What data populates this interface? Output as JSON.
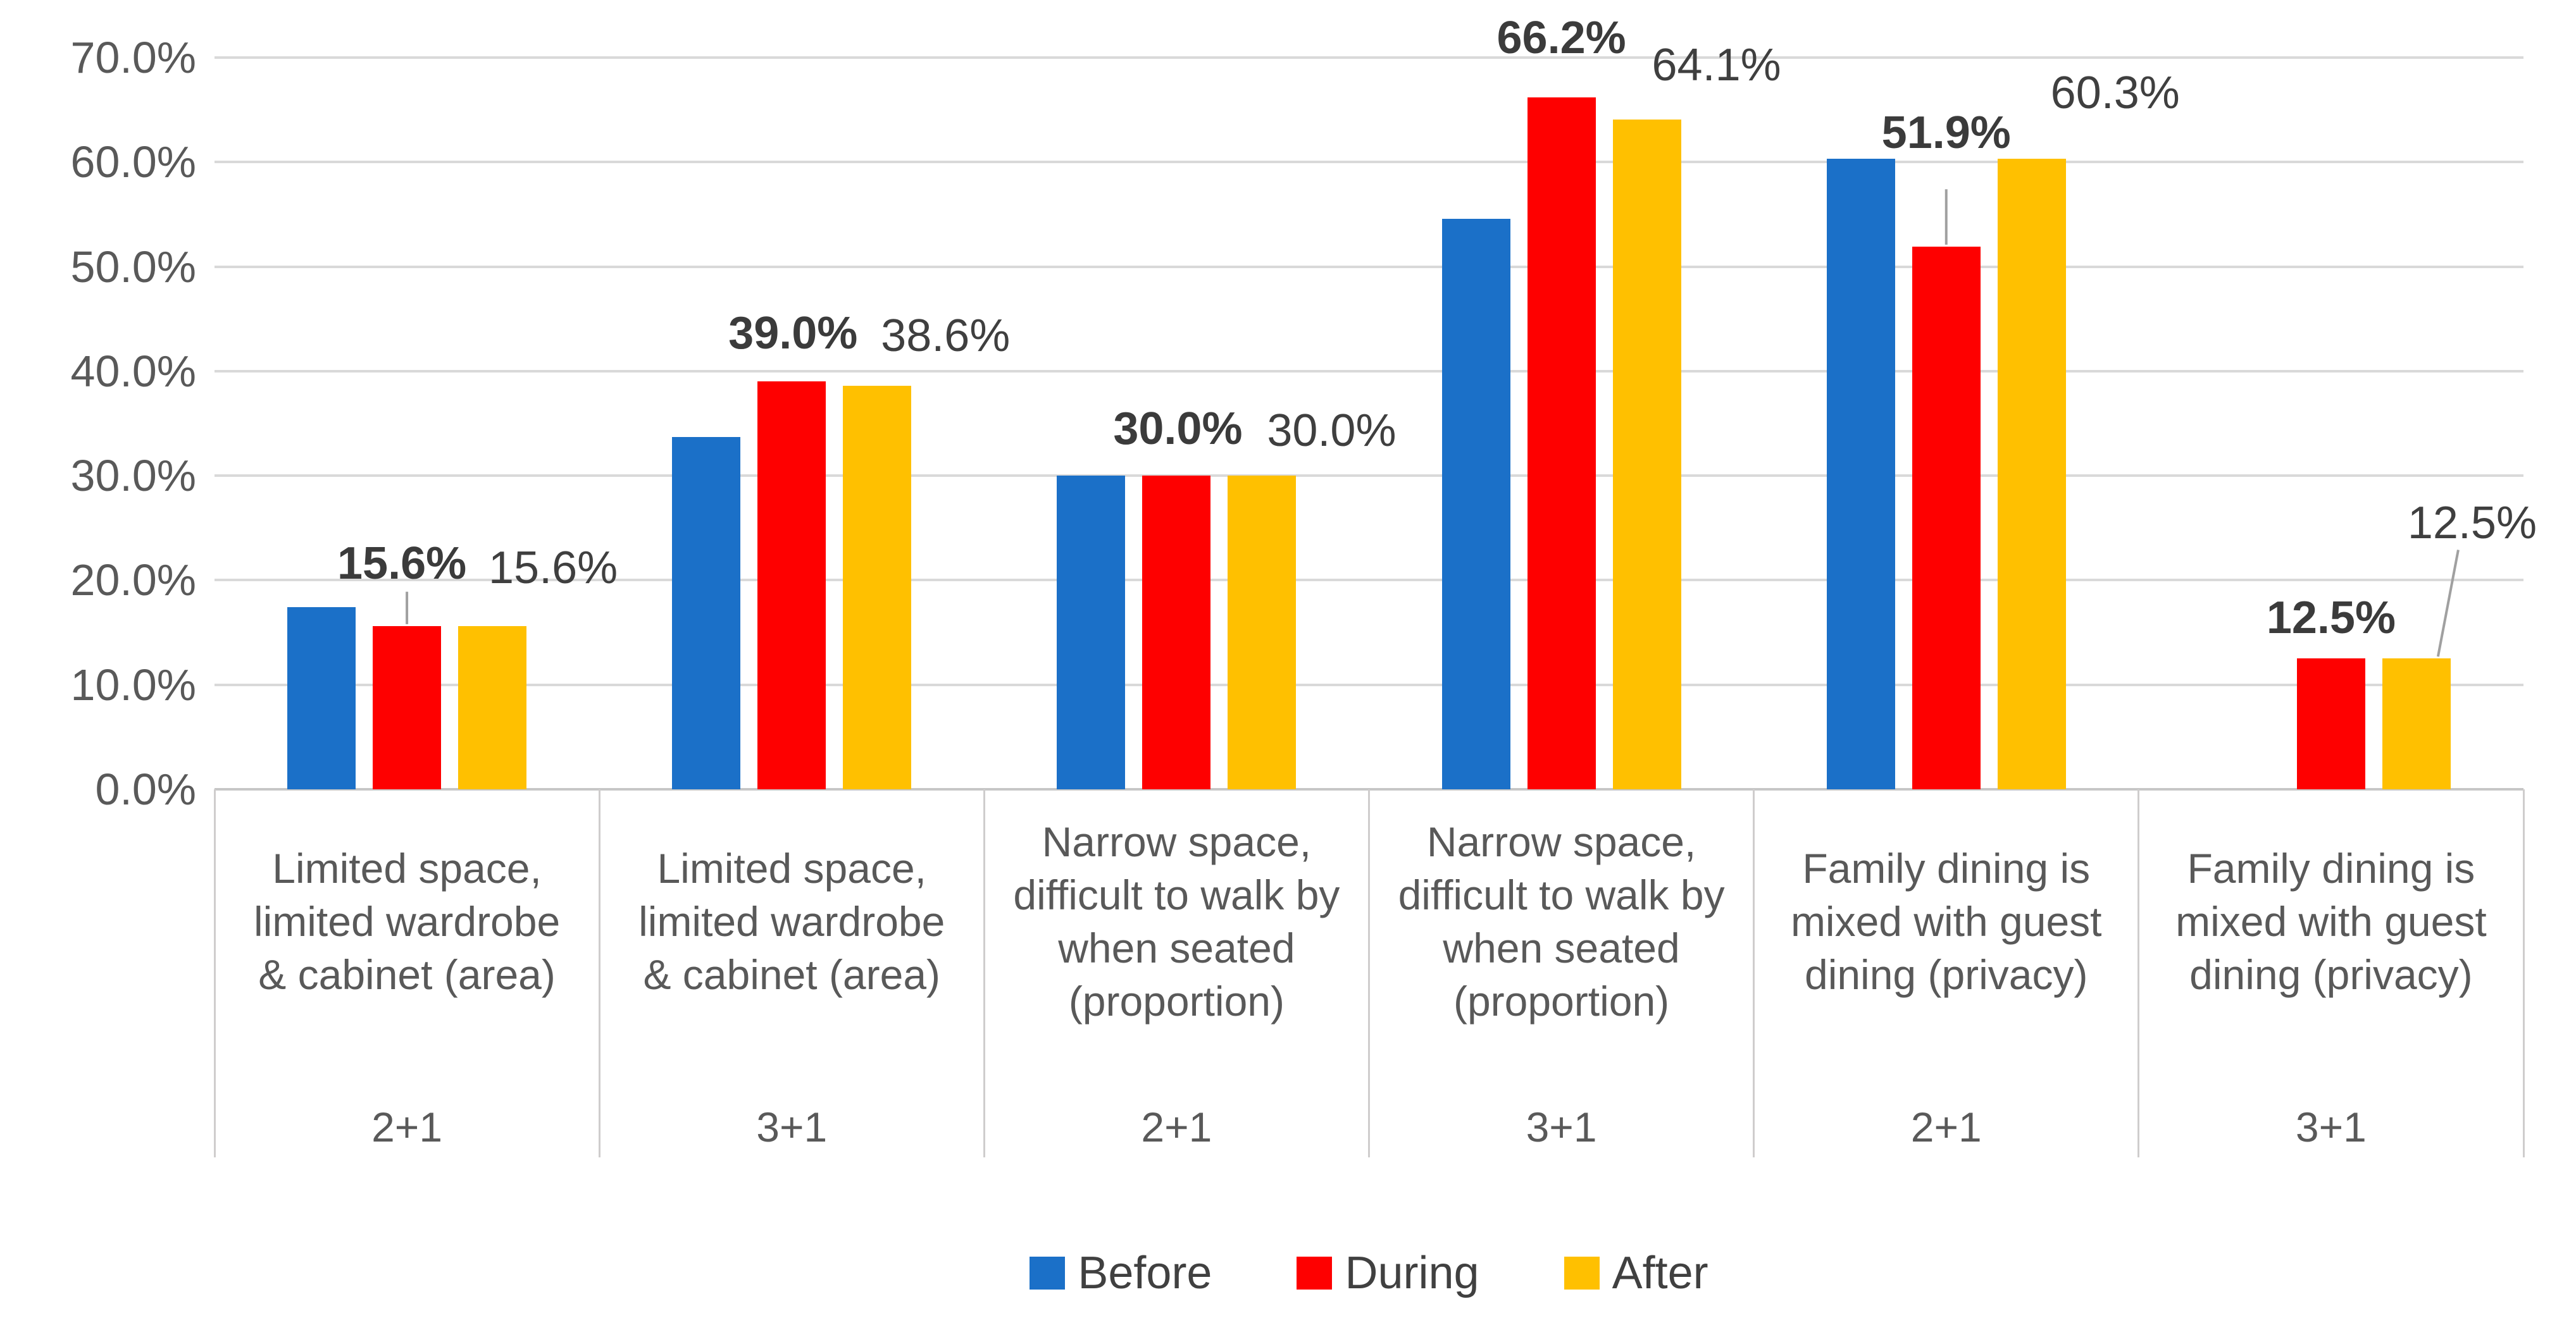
{
  "chart_data": {
    "type": "bar",
    "title": "",
    "xlabel": "",
    "ylabel": "",
    "ylim": [
      0,
      70
    ],
    "grid": true,
    "legend_position": "bottom",
    "y_axis": {
      "ticks": [
        {
          "label": "70.0%",
          "value": 70
        },
        {
          "label": "60.0%",
          "value": 60
        },
        {
          "label": "50.0%",
          "value": 50
        },
        {
          "label": "40.0%",
          "value": 40
        },
        {
          "label": "30.0%",
          "value": 30
        },
        {
          "label": "20.0%",
          "value": 20
        },
        {
          "label": "10.0%",
          "value": 10
        },
        {
          "label": "0.0%",
          "value": 0
        }
      ]
    },
    "categories": [
      {
        "label_lines": [
          "Limited space,",
          "limited wardrobe",
          "& cabinet (area)"
        ],
        "sub": "2+1"
      },
      {
        "label_lines": [
          "Limited space,",
          "limited wardrobe",
          "& cabinet (area)"
        ],
        "sub": "3+1"
      },
      {
        "label_lines": [
          "Narrow space,",
          "difficult to walk by",
          "when seated",
          "(proportion)"
        ],
        "sub": "2+1"
      },
      {
        "label_lines": [
          "Narrow space,",
          "difficult to walk by",
          "when seated",
          "(proportion)"
        ],
        "sub": "3+1"
      },
      {
        "label_lines": [
          "Family dining is",
          "mixed with guest",
          "dining (privacy)"
        ],
        "sub": "2+1"
      },
      {
        "label_lines": [
          "Family dining is",
          "mixed with guest",
          "dining (privacy)"
        ],
        "sub": "3+1"
      }
    ],
    "series": [
      {
        "name": "Before",
        "color": "#1b70c8",
        "values": [
          17.4,
          33.7,
          30.0,
          54.6,
          60.3,
          null
        ]
      },
      {
        "name": "During",
        "color": "#fe0000",
        "values": [
          15.6,
          39.0,
          30.0,
          66.2,
          51.9,
          12.5
        ]
      },
      {
        "name": "After",
        "color": "#ffc000",
        "values": [
          15.6,
          38.6,
          30.0,
          64.1,
          60.3,
          12.5
        ]
      }
    ],
    "annotations": [
      {
        "text": "15.6%",
        "bold": true,
        "group": 0,
        "series": "During",
        "value": 21.6,
        "dx": -8
      },
      {
        "text": "15.6%",
        "bold": false,
        "group": 0,
        "series": "After",
        "value": 21.2,
        "dx": 96
      },
      {
        "text": "39.0%",
        "bold": true,
        "group": 1,
        "series": "During",
        "value": 43.6,
        "dx": 2
      },
      {
        "text": "38.6%",
        "bold": false,
        "group": 1,
        "series": "After",
        "value": 43.4,
        "dx": 108
      },
      {
        "text": "30.0%",
        "bold": true,
        "group": 2,
        "series": "During",
        "value": 34.5,
        "dx": 2
      },
      {
        "text": "30.0%",
        "bold": false,
        "group": 2,
        "series": "After",
        "value": 34.3,
        "dx": 110
      },
      {
        "text": "66.2%",
        "bold": true,
        "group": 3,
        "series": "During",
        "value": 71.9,
        "dx": 0
      },
      {
        "text": "64.1%",
        "bold": false,
        "group": 3,
        "series": "After",
        "value": 69.3,
        "dx": 110
      },
      {
        "text": "51.9%",
        "bold": true,
        "group": 4,
        "series": "During",
        "value": 62.8,
        "dx": 0
      },
      {
        "text": "60.3%",
        "bold": false,
        "group": 4,
        "series": "After",
        "value": 66.6,
        "dx": 132
      },
      {
        "text": "12.5%",
        "bold": true,
        "group": 5,
        "series": "During",
        "value": 16.4,
        "dx": 0
      },
      {
        "text": "12.5%",
        "bold": false,
        "group": 5,
        "series": "After",
        "value": 25.5,
        "dx": 88
      }
    ],
    "leader_lines": [
      {
        "group": 0,
        "series": "During",
        "dx1": 0,
        "v1": 18.9,
        "dx2": 0,
        "v2": 15.8
      },
      {
        "group": 4,
        "series": "During",
        "dx1": 0,
        "v1": 57.4,
        "dx2": 0,
        "v2": 52.1
      },
      {
        "group": 5,
        "series": "After",
        "dx1": 66,
        "v1": 22.9,
        "dx2": 34,
        "v2": 12.7
      }
    ],
    "legend": {
      "items": [
        {
          "label": "Before",
          "color": "#1b70c8"
        },
        {
          "label": "During",
          "color": "#fe0000"
        },
        {
          "label": "After",
          "color": "#ffc000"
        }
      ]
    },
    "colors": {
      "gridline": "#d9d9d9",
      "axis_line": "#c6c6c6",
      "divider": "#cfcdcd",
      "leader": "#a0a0a0",
      "tick_text": "#595959",
      "label_text": "#3f3f3f"
    }
  }
}
